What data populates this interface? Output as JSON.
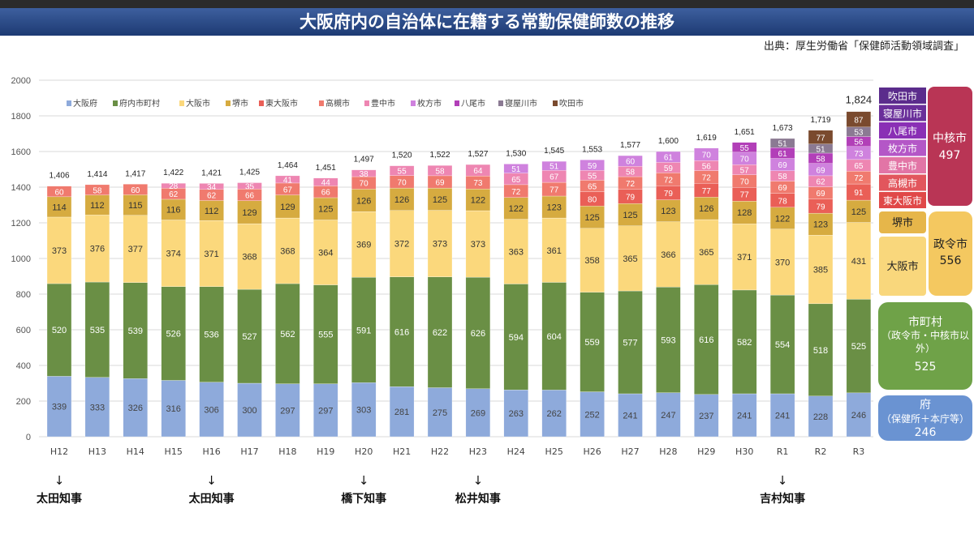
{
  "title": "大阪府内の自治体に在籍する常勤保健師数の推移",
  "source": "出典：厚生労働省「保健師活動領域調査」",
  "chart_data": {
    "type": "bar",
    "stacked": true,
    "title": "大阪府内の自治体に在籍する常勤保健師数の推移",
    "ylim": [
      0,
      2000
    ],
    "yticks": [
      0,
      200,
      400,
      600,
      800,
      1000,
      1200,
      1400,
      1600,
      1800,
      2000
    ],
    "categories": [
      "H12",
      "H13",
      "H14",
      "H15",
      "H16",
      "H17",
      "H18",
      "H19",
      "H20",
      "H21",
      "H22",
      "H23",
      "H24",
      "H25",
      "H26",
      "H27",
      "H28",
      "H29",
      "H30",
      "R1",
      "R2",
      "R3"
    ],
    "totals": [
      "1,406",
      "1,414",
      "1,417",
      "1,422",
      "1,421",
      "1,425",
      "1,464",
      "1,451",
      "1,497",
      "1,520",
      "1,522",
      "1,527",
      "1,530",
      "1,545",
      "1,553",
      "1,577",
      "1,600",
      "1,619",
      "1,651",
      "1,673",
      "1,719",
      "1,824"
    ],
    "series": [
      {
        "name": "大阪府",
        "color": "#8eaadb",
        "values": [
          339,
          333,
          326,
          316,
          306,
          300,
          297,
          297,
          303,
          281,
          275,
          269,
          263,
          262,
          252,
          241,
          247,
          237,
          241,
          241,
          228,
          246
        ]
      },
      {
        "name": "府内市町村",
        "color": "#6a8f45",
        "values": [
          520,
          535,
          539,
          526,
          536,
          527,
          562,
          555,
          591,
          616,
          622,
          626,
          594,
          604,
          559,
          577,
          593,
          616,
          582,
          554,
          518,
          525
        ]
      },
      {
        "name": "大阪市",
        "color": "#fbd87c",
        "values": [
          373,
          376,
          377,
          374,
          371,
          368,
          368,
          364,
          369,
          372,
          373,
          373,
          363,
          361,
          358,
          365,
          366,
          365,
          371,
          370,
          385,
          431
        ]
      },
      {
        "name": "堺市",
        "color": "#d6ab40",
        "values": [
          114,
          112,
          115,
          116,
          112,
          129,
          129,
          125,
          126,
          126,
          125,
          122,
          122,
          123,
          125,
          125,
          123,
          126,
          128,
          122,
          123,
          125
        ]
      },
      {
        "name": "東大阪市",
        "color": "#ea5f57",
        "values": [
          0,
          0,
          0,
          0,
          0,
          0,
          0,
          0,
          0,
          0,
          0,
          0,
          0,
          0,
          80,
          79,
          79,
          77,
          77,
          78,
          79,
          91
        ]
      },
      {
        "name": "高槻市",
        "color": "#f07a6e",
        "values": [
          60,
          58,
          60,
          62,
          62,
          66,
          67,
          66,
          70,
          70,
          69,
          73,
          72,
          77,
          65,
          72,
          72,
          72,
          70,
          69,
          69,
          72
        ]
      },
      {
        "name": "豊中市",
        "color": "#ee86b2",
        "values": [
          0,
          0,
          0,
          28,
          34,
          35,
          41,
          44,
          38,
          55,
          58,
          64,
          65,
          67,
          55,
          58,
          59,
          56,
          57,
          58,
          62,
          65
        ]
      },
      {
        "name": "枚方市",
        "color": "#cf82de",
        "values": [
          0,
          0,
          0,
          0,
          0,
          0,
          0,
          0,
          0,
          0,
          0,
          0,
          51,
          51,
          59,
          60,
          61,
          70,
          70,
          69,
          69,
          73
        ]
      },
      {
        "name": "八尾市",
        "color": "#b23fb8",
        "values": [
          0,
          0,
          0,
          0,
          0,
          0,
          0,
          0,
          0,
          0,
          0,
          0,
          0,
          0,
          0,
          0,
          0,
          0,
          55,
          61,
          58,
          56
        ]
      },
      {
        "name": "寝屋川市",
        "color": "#8b7a93",
        "values": [
          0,
          0,
          0,
          0,
          0,
          0,
          0,
          0,
          0,
          0,
          0,
          0,
          0,
          0,
          0,
          0,
          0,
          0,
          0,
          51,
          51,
          53
        ]
      },
      {
        "name": "吹田市",
        "color": "#7a4a2e",
        "values": [
          0,
          0,
          0,
          0,
          0,
          0,
          0,
          0,
          0,
          0,
          0,
          0,
          0,
          0,
          0,
          0,
          0,
          0,
          0,
          0,
          77,
          87
        ]
      }
    ]
  },
  "governors": [
    {
      "category": "H12",
      "label": "太田知事"
    },
    {
      "category": "H16",
      "label": "太田知事"
    },
    {
      "category": "H20",
      "label": "橋下知事"
    },
    {
      "category": "H23",
      "label": "松井知事"
    },
    {
      "category": "R1",
      "label": "吉村知事"
    }
  ],
  "arrow_glyph": "↓",
  "right_panel": {
    "core_items": [
      "吹田市",
      "寝屋川市",
      "八尾市",
      "枚方市",
      "豊中市",
      "高槻市",
      "東大阪市"
    ],
    "core_colors": [
      "#5b2c8c",
      "#6a2f9a",
      "#8a2fb5",
      "#b457c7",
      "#e275a6",
      "#e2565d",
      "#e04848"
    ],
    "core_group_label": "中核市",
    "core_group_value": "497",
    "designated_items": [
      "堺市",
      "大阪市"
    ],
    "designated_group_label": "政令市",
    "designated_group_value": "556",
    "muni_label": "市町村",
    "muni_sub": "（政令市・中核市以外）",
    "muni_value": "525",
    "pref_label": "府",
    "pref_sub": "（保健所＋本庁等）",
    "pref_value": "246"
  }
}
